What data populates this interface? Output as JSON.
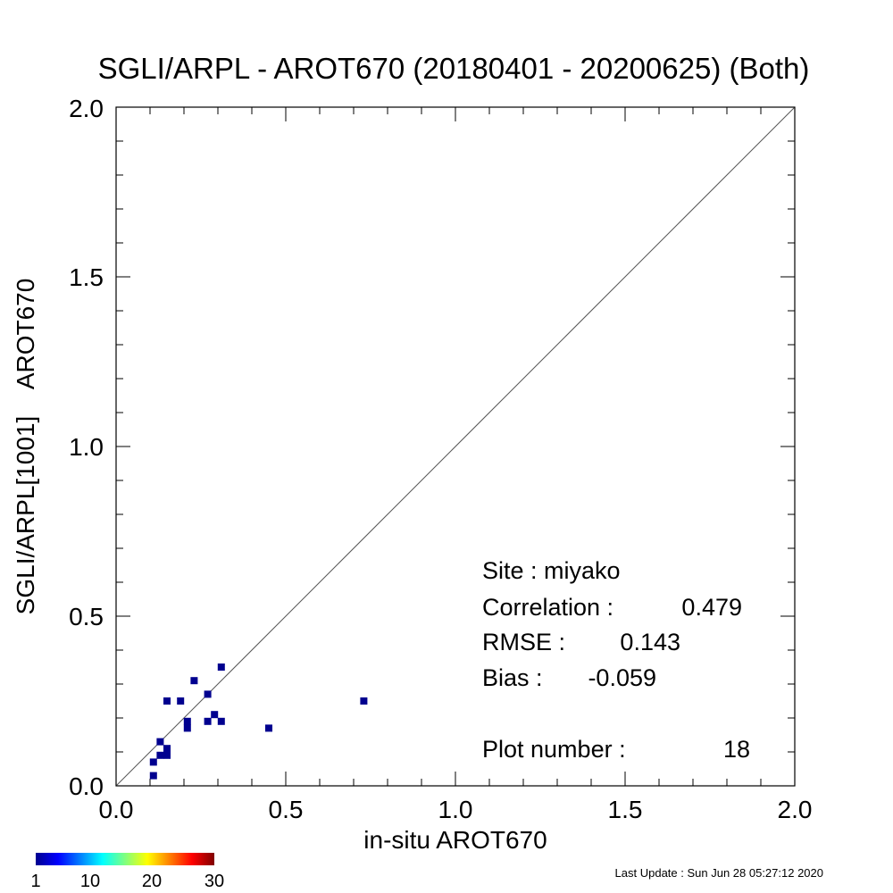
{
  "chart_data": {
    "type": "scatter",
    "title": "SGLI/ARPL - AROT670 (20180401 - 20200625) (Both)",
    "xlabel": "in-situ AROT670",
    "ylabel": "SGLI/ARPL[1001]    AROT670",
    "xlim": [
      0.0,
      2.0
    ],
    "ylim": [
      0.0,
      2.0
    ],
    "x_ticks": [
      "0.0",
      "0.5",
      "1.0",
      "1.5",
      "2.0"
    ],
    "y_ticks": [
      "0.0",
      "0.5",
      "1.0",
      "1.5",
      "2.0"
    ],
    "reference_line": "1:1",
    "grid": false,
    "marker_color": "#00008f",
    "points": [
      {
        "x": 0.11,
        "y": 0.03
      },
      {
        "x": 0.11,
        "y": 0.07
      },
      {
        "x": 0.13,
        "y": 0.09
      },
      {
        "x": 0.13,
        "y": 0.13
      },
      {
        "x": 0.15,
        "y": 0.09
      },
      {
        "x": 0.15,
        "y": 0.11
      },
      {
        "x": 0.15,
        "y": 0.25
      },
      {
        "x": 0.19,
        "y": 0.25
      },
      {
        "x": 0.21,
        "y": 0.17
      },
      {
        "x": 0.21,
        "y": 0.19
      },
      {
        "x": 0.23,
        "y": 0.31
      },
      {
        "x": 0.27,
        "y": 0.19
      },
      {
        "x": 0.27,
        "y": 0.27
      },
      {
        "x": 0.29,
        "y": 0.21
      },
      {
        "x": 0.31,
        "y": 0.19
      },
      {
        "x": 0.31,
        "y": 0.35
      },
      {
        "x": 0.45,
        "y": 0.17
      },
      {
        "x": 0.73,
        "y": 0.25
      }
    ],
    "annotations": {
      "site": "Site : miyako",
      "correlation_label": "Correlation :",
      "correlation_value": "0.479",
      "rmse_label": "RMSE :",
      "rmse_value": "0.143",
      "bias_label": "Bias :",
      "bias_value": "-0.059",
      "plot_number_label": "Plot number :",
      "plot_number_value": "18"
    },
    "colorbar": {
      "colormap": "jet",
      "labels": [
        "1",
        "10",
        "20",
        "30"
      ]
    }
  },
  "footer": {
    "last_update": "Last Update : Sun Jun 28 05:27:12 2020"
  }
}
